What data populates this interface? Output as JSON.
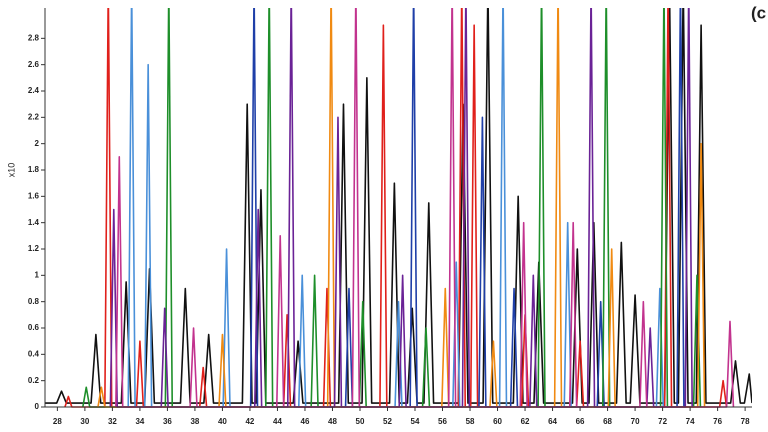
{
  "chart_data": {
    "type": "line",
    "y_label": "x10",
    "annotation": "(c",
    "xlim": [
      27.1,
      78.5
    ],
    "ylim": [
      0,
      3.0
    ],
    "xticks": [
      28,
      30,
      32,
      34,
      36,
      38,
      40,
      42,
      44,
      46,
      48,
      50,
      52,
      54,
      56,
      58,
      60,
      62,
      64,
      66,
      68,
      70,
      72,
      74,
      76,
      78
    ],
    "yticks": [
      0,
      0.2,
      0.4,
      0.6,
      0.8,
      1,
      1.2,
      1.4,
      1.6,
      1.8,
      2,
      2.2,
      2.4,
      2.6,
      2.8
    ],
    "series": [
      {
        "color": "#111111",
        "x": [
          27.1,
          27.95,
          28.3,
          28.65,
          30.45,
          30.8,
          31.15,
          32.65,
          33,
          33.35,
          34.35,
          34.7,
          35.05,
          36.95,
          37.3,
          37.65,
          38.65,
          39,
          39.35,
          41.45,
          41.8,
          42.15,
          42.45,
          42.8,
          43.15,
          45.15,
          45.5,
          45.85,
          48.45,
          48.8,
          49.15,
          50.15,
          50.5,
          50.85,
          52.15,
          52.5,
          52.85,
          53.45,
          53.8,
          54.15,
          54.65,
          55,
          55.35,
          57.15,
          57.5,
          57.85,
          58.95,
          59.3,
          59.65,
          61.15,
          61.5,
          61.85,
          62.65,
          63,
          63.35,
          65.45,
          65.8,
          66.15,
          66.65,
          67,
          67.35,
          68.65,
          69,
          69.35,
          69.65,
          70,
          70.35,
          72.15,
          72.5,
          72.85,
          73.15,
          73.5,
          73.85,
          74.45,
          74.8,
          75.15,
          76.95,
          77.3,
          77.65,
          77.95,
          78.3,
          78.5
        ],
        "values": [
          0.03,
          0.03,
          0.12,
          0.03,
          0.03,
          0.55,
          0.03,
          0.03,
          0.95,
          0.03,
          0.03,
          1.05,
          0.03,
          0.03,
          0.9,
          0.03,
          0.03,
          0.55,
          0.03,
          0.03,
          2.3,
          0.03,
          0.03,
          1.65,
          0.03,
          0.03,
          0.5,
          0.03,
          0.03,
          2.3,
          0.03,
          0.03,
          2.5,
          0.03,
          0.03,
          1.7,
          0.03,
          0.03,
          0.75,
          0.03,
          0.03,
          1.55,
          0.03,
          0.03,
          2.3,
          0.03,
          0.03,
          3.2,
          0.03,
          0.03,
          1.6,
          0.03,
          0.03,
          1.1,
          0.03,
          0.03,
          1.2,
          0.03,
          0.03,
          1.4,
          0.03,
          0.03,
          1.25,
          0.03,
          0.03,
          0.85,
          0.03,
          0.03,
          3.2,
          0.03,
          0.03,
          3.2,
          0.03,
          0.03,
          2.9,
          0.03,
          0.03,
          0.35,
          0.03,
          0.03,
          0.25,
          0.03
        ]
      },
      {
        "color": "#e0201b",
        "x": [
          28.55,
          28.8,
          29.05,
          31.45,
          31.7,
          31.95,
          33.75,
          34,
          34.25,
          38.35,
          38.6,
          38.85,
          44.45,
          44.7,
          44.95,
          47.35,
          47.6,
          47.85,
          51.45,
          51.7,
          51.95,
          57.15,
          57.4,
          57.65,
          58.05,
          58.3,
          58.55,
          61.75,
          62,
          62.25,
          65.75,
          66,
          66.25,
          72.15,
          72.4,
          72.65,
          76.15,
          76.4,
          76.65
        ],
        "values": [
          0,
          0.08,
          0,
          0,
          3.2,
          0,
          0,
          0.5,
          0,
          0,
          0.3,
          0,
          0,
          0.7,
          0,
          0,
          0.9,
          0,
          0,
          2.9,
          0,
          0,
          3.2,
          0,
          0,
          2.9,
          0,
          0,
          0.7,
          0,
          0,
          0.5,
          0,
          0,
          3.2,
          0,
          0,
          0.2,
          0
        ]
      },
      {
        "color": "#1f3fa8",
        "x": [
          42.05,
          42.3,
          42.55,
          48.95,
          49.2,
          49.45,
          53.65,
          53.9,
          54.15,
          58.65,
          58.9,
          59.15,
          60.95,
          61.2,
          61.45,
          67.25,
          67.5,
          67.75,
          73.05,
          73.3,
          73.55
        ],
        "values": [
          0,
          3.2,
          0,
          0,
          0.9,
          0,
          0,
          3.2,
          0,
          0,
          2.2,
          0,
          0,
          0.9,
          0,
          0,
          0.8,
          0,
          0,
          3.2,
          0
        ]
      },
      {
        "color": "#4a90d9",
        "x": [
          33.15,
          33.4,
          33.65,
          34.35,
          34.6,
          34.85,
          40.05,
          40.3,
          40.55,
          45.55,
          45.8,
          46.05,
          52.55,
          52.8,
          53.05,
          56.75,
          57,
          57.25,
          60.15,
          60.4,
          60.65,
          64.85,
          65.1,
          65.35,
          71.55,
          71.8,
          72.05
        ],
        "values": [
          0,
          3.2,
          0,
          0,
          2.6,
          0,
          0,
          1.2,
          0,
          0,
          1,
          0,
          0,
          0.8,
          0,
          0,
          1.1,
          0,
          0,
          3.2,
          0,
          0,
          1.4,
          0,
          0,
          0.9,
          0
        ]
      },
      {
        "color": "#1e8f2a",
        "x": [
          29.85,
          30.1,
          30.35,
          35.85,
          36.1,
          36.35,
          43.15,
          43.4,
          43.65,
          46.45,
          46.7,
          46.95,
          49.95,
          50.2,
          50.45,
          54.55,
          54.8,
          55.05,
          62.95,
          63.2,
          63.45,
          67.65,
          67.9,
          68.15,
          71.85,
          72.1,
          72.35,
          74.25,
          74.5,
          74.75
        ],
        "values": [
          0,
          0.15,
          0,
          0,
          3.2,
          0,
          0,
          3.2,
          0,
          0,
          1,
          0,
          0,
          0.8,
          0,
          0,
          0.6,
          0,
          0,
          3.2,
          0,
          0,
          3.2,
          0,
          0,
          3.2,
          0,
          0,
          1,
          0
        ]
      },
      {
        "color": "#f08a12",
        "x": [
          30.95,
          31.2,
          31.45,
          39.75,
          40,
          40.25,
          47.65,
          47.9,
          48.15,
          55.95,
          56.2,
          56.45,
          59.45,
          59.7,
          59.95,
          64.15,
          64.4,
          64.65,
          68.05,
          68.3,
          68.55,
          74.55,
          74.8,
          75.05
        ],
        "values": [
          0,
          0.15,
          0,
          0,
          0.55,
          0,
          0,
          3.2,
          0,
          0,
          0.9,
          0,
          0,
          0.5,
          0,
          0,
          3.2,
          0,
          0,
          1.2,
          0,
          0,
          2,
          0
        ]
      },
      {
        "color": "#6a2296",
        "x": [
          31.85,
          32.1,
          32.35,
          35.55,
          35.8,
          36.05,
          42.35,
          42.6,
          42.85,
          44.75,
          45,
          45.25,
          48.15,
          48.4,
          48.65,
          52.85,
          53.1,
          53.35,
          57.45,
          57.7,
          57.95,
          62.35,
          62.6,
          62.85,
          66.55,
          66.8,
          67.05,
          70.85,
          71.1,
          71.35,
          73.65,
          73.9,
          74.15
        ],
        "values": [
          0,
          1.5,
          0,
          0,
          0.75,
          0,
          0,
          1.5,
          0,
          0,
          3.2,
          0,
          0,
          2.2,
          0,
          0,
          1,
          0,
          0,
          3.2,
          0,
          0,
          1,
          0,
          0,
          3.2,
          0,
          0,
          0.6,
          0,
          0,
          3.2,
          0
        ]
      },
      {
        "color": "#c2338e",
        "x": [
          32.25,
          32.5,
          32.75,
          37.65,
          37.9,
          38.15,
          43.95,
          44.2,
          44.45,
          49.45,
          49.7,
          49.95,
          56.45,
          56.7,
          56.95,
          61.65,
          61.9,
          62.15,
          65.25,
          65.5,
          65.75,
          70.35,
          70.6,
          70.85,
          76.65,
          76.9,
          77.15
        ],
        "values": [
          0,
          1.9,
          0,
          0,
          0.6,
          0,
          0,
          1.3,
          0,
          0,
          3.2,
          0,
          0,
          3.2,
          0,
          0,
          1.4,
          0,
          0,
          1.4,
          0,
          0,
          0.8,
          0,
          0,
          0.65,
          0
        ]
      }
    ]
  }
}
